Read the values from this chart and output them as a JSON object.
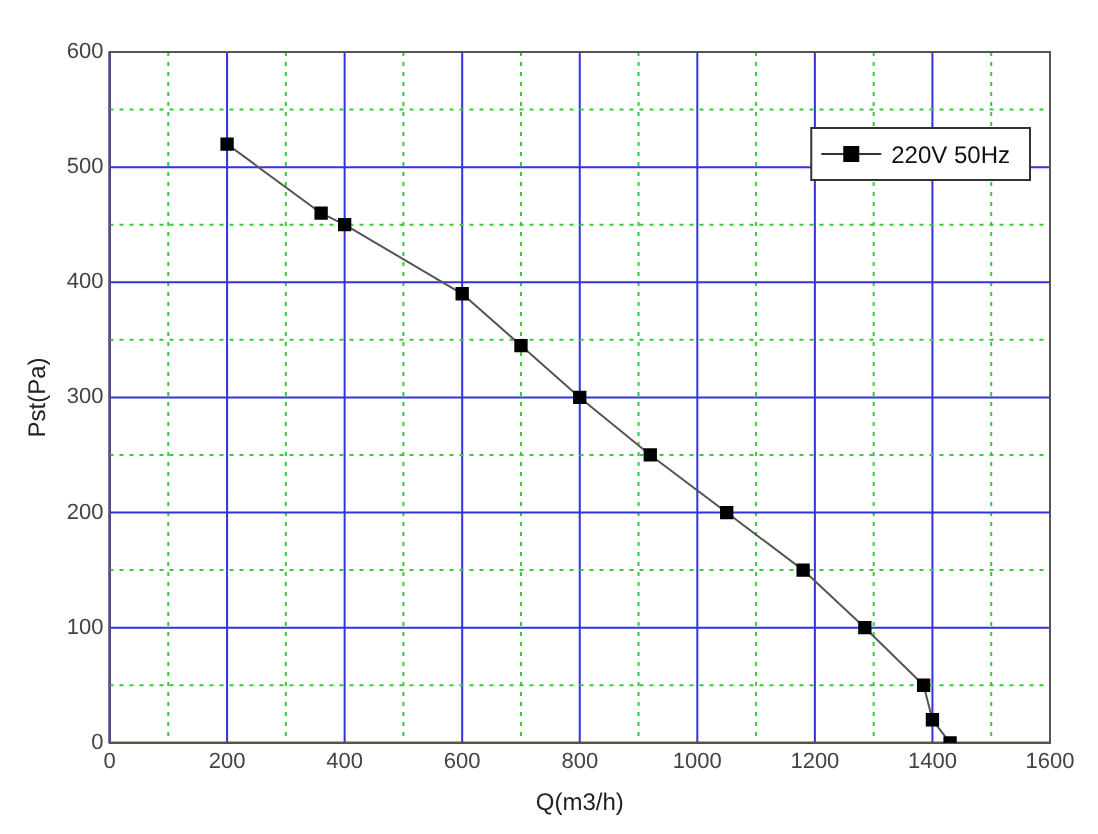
{
  "chart_data": {
    "type": "line",
    "xlabel": "Q(m3/h)",
    "ylabel": "Pst(Pa)",
    "xlim": [
      0,
      1600
    ],
    "xticks": [
      0,
      {
        "value": 100,
        "label": null
      },
      200,
      {
        "value": 300,
        "label": null
      },
      400,
      {
        "value": 500,
        "label": null
      },
      600,
      {
        "value": 700,
        "label": null
      },
      800,
      {
        "value": 900,
        "label": null
      },
      1000,
      {
        "value": 1100,
        "label": null
      },
      1200,
      {
        "value": 1300,
        "label": null
      },
      1400,
      {
        "value": 1500,
        "label": null
      },
      1600
    ],
    "ylim": [
      0,
      600
    ],
    "yticks": [
      0,
      {
        "value": 50,
        "label": null
      },
      100,
      {
        "value": 150,
        "label": null
      },
      200,
      {
        "value": 250,
        "label": null
      },
      300,
      {
        "value": 350,
        "label": null
      },
      400,
      {
        "value": 450,
        "label": null
      },
      500,
      {
        "value": 550,
        "label": null
      },
      600
    ],
    "grid": true,
    "legend": "top right",
    "marker": "square",
    "line_style": "solid",
    "series": [
      {
        "name": "220V 50Hz",
        "color": "#000000",
        "x": [
          200,
          360,
          400,
          600,
          700,
          800,
          920,
          1050,
          1180,
          1285,
          1385,
          1400,
          1430
        ],
        "values": [
          520,
          460,
          450,
          390,
          345,
          300,
          250,
          200,
          150,
          100,
          50,
          20,
          0
        ]
      }
    ]
  }
}
